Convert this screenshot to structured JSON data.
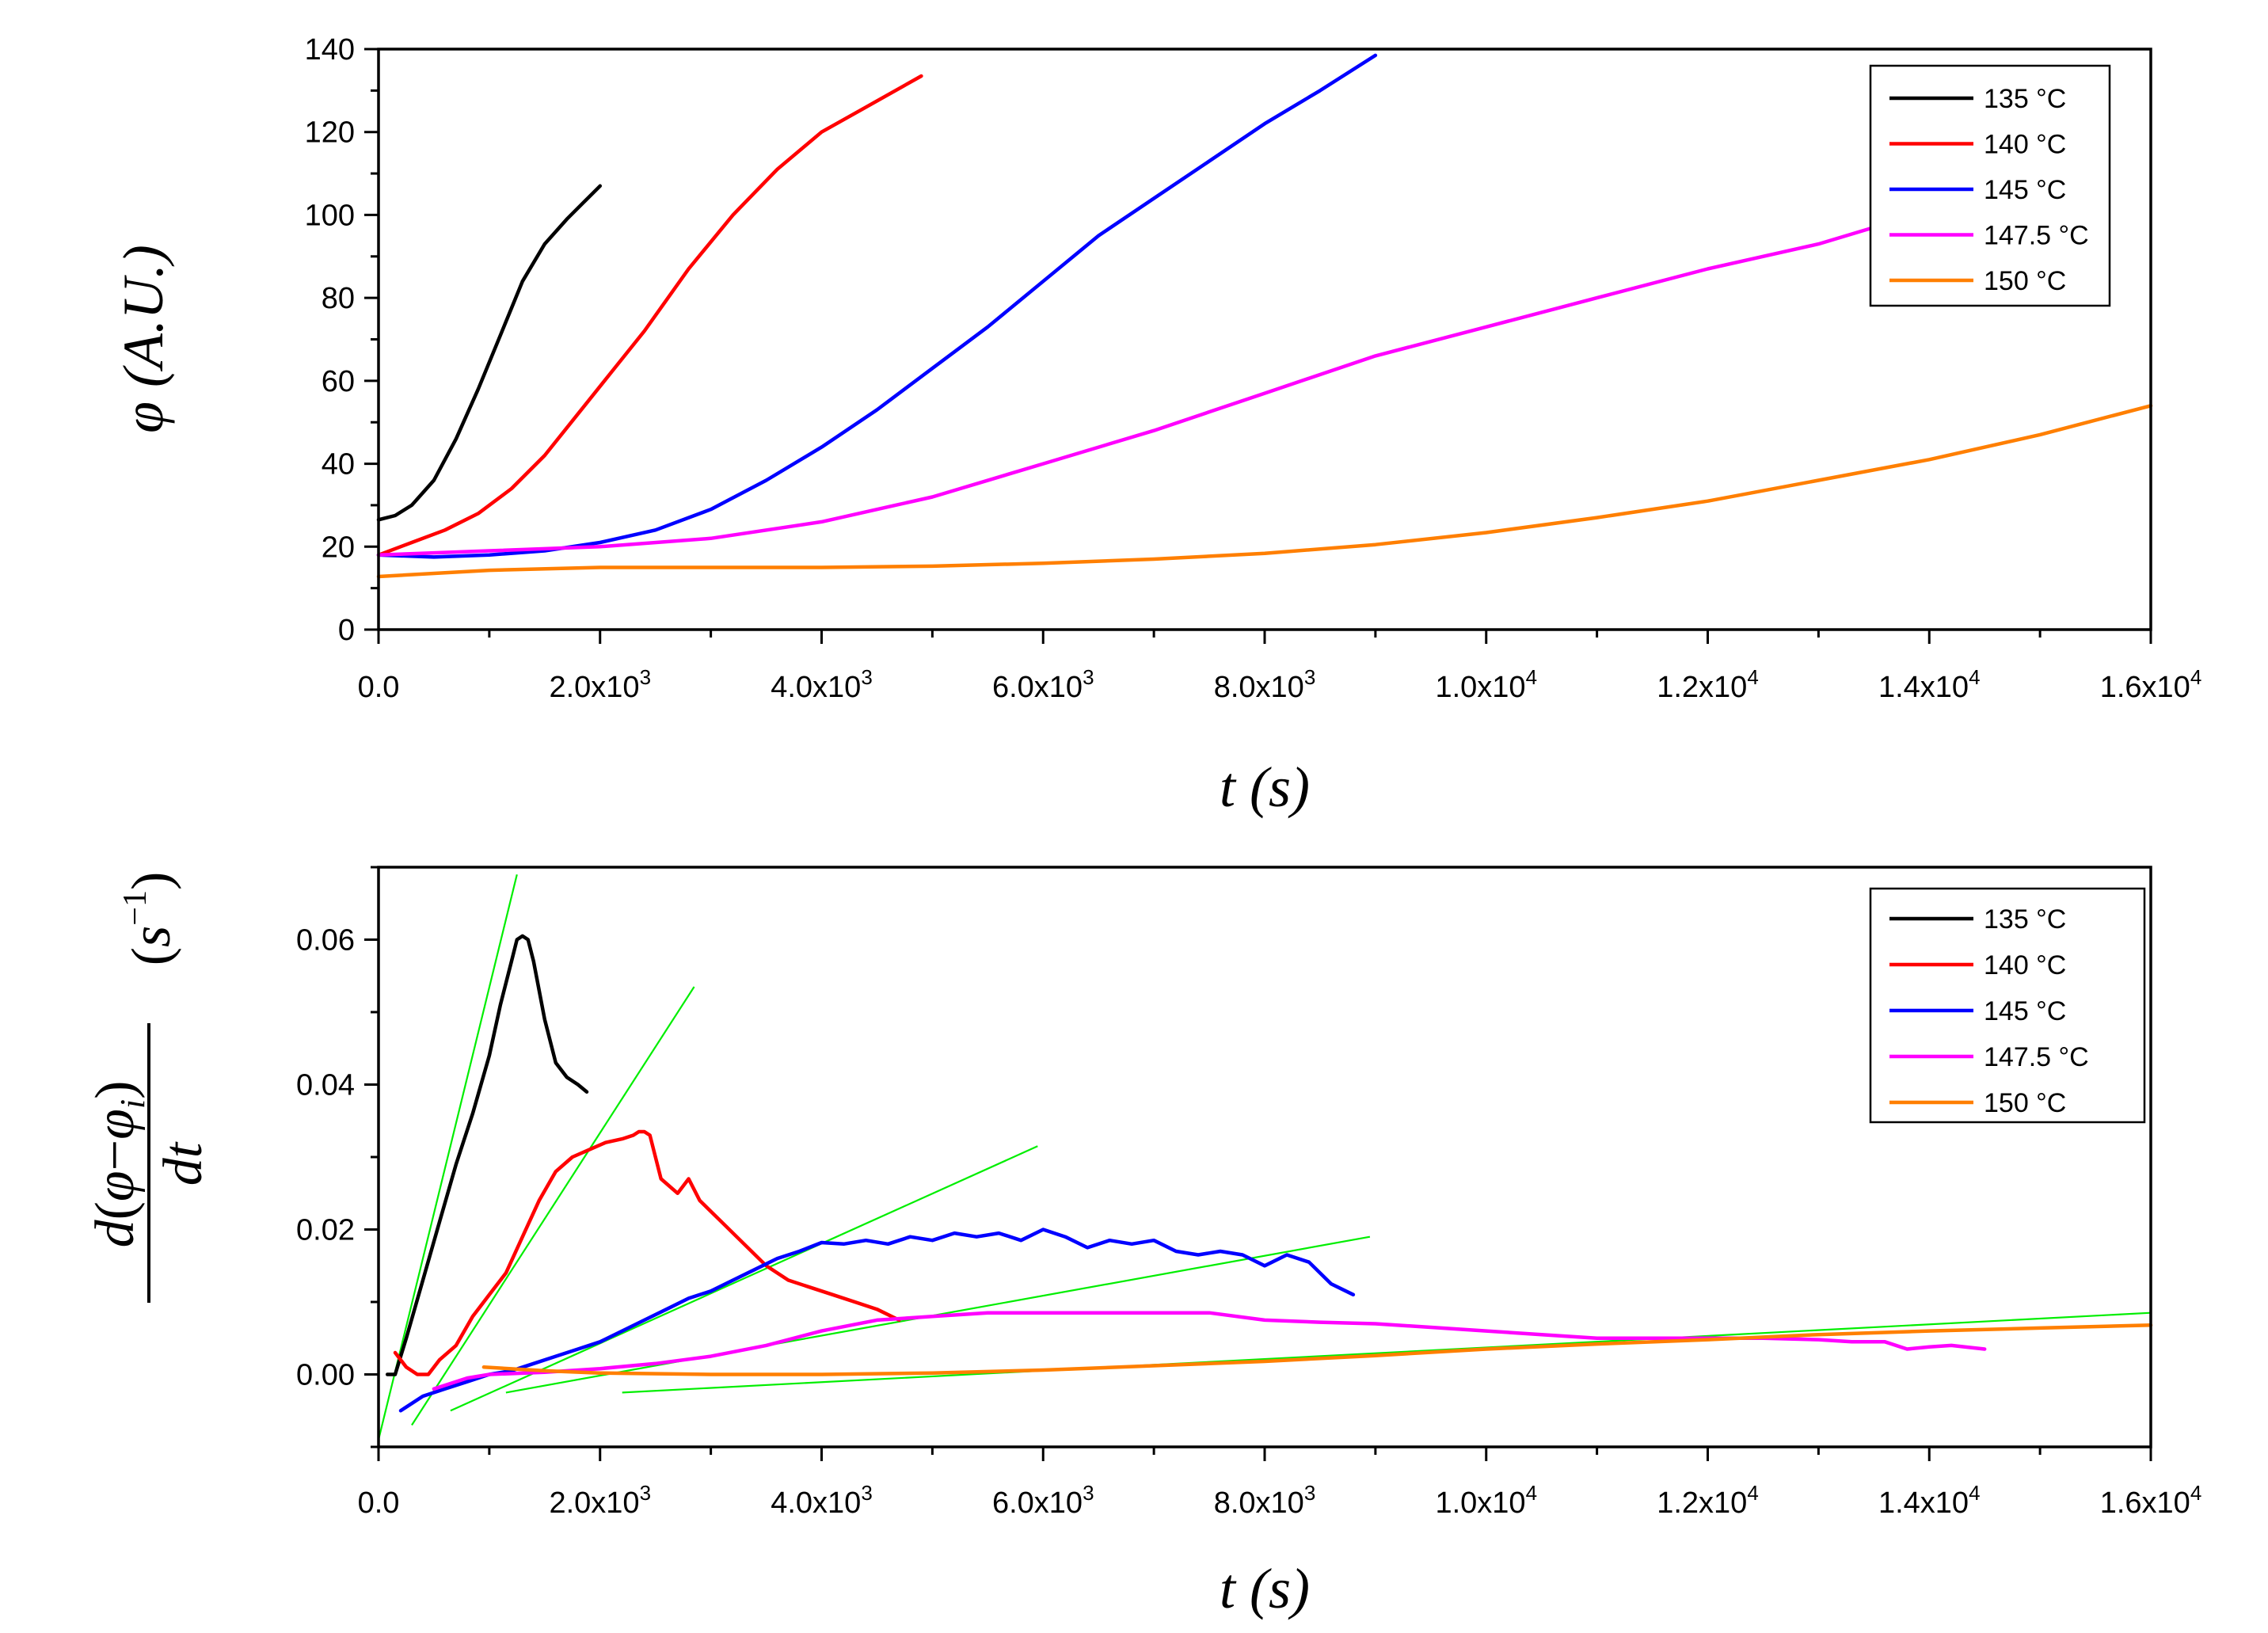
{
  "chart_data": [
    {
      "type": "line",
      "panel": "top",
      "xlabel": "t (s)",
      "ylabel": "φ  (A.U.)",
      "xlim": [
        0,
        16000
      ],
      "ylim": [
        0,
        140
      ],
      "xticks": [
        {
          "value": 0,
          "base": "0.0",
          "exp": ""
        },
        {
          "value": 2000,
          "base": "2.0x10",
          "exp": "3"
        },
        {
          "value": 4000,
          "base": "4.0x10",
          "exp": "3"
        },
        {
          "value": 6000,
          "base": "6.0x10",
          "exp": "3"
        },
        {
          "value": 8000,
          "base": "8.0x10",
          "exp": "3"
        },
        {
          "value": 10000,
          "base": "1.0x10",
          "exp": "4"
        },
        {
          "value": 12000,
          "base": "1.2x10",
          "exp": "4"
        },
        {
          "value": 14000,
          "base": "1.4x10",
          "exp": "4"
        },
        {
          "value": 16000,
          "base": "1.6x10",
          "exp": "4"
        }
      ],
      "yticks": [
        "0",
        "20",
        "40",
        "60",
        "80",
        "100",
        "120",
        "140"
      ],
      "legend": {
        "position": "top-right",
        "entries": [
          "135 °C",
          "140 °C",
          "145 °C",
          "147.5 °C",
          "150 °C"
        ]
      },
      "series": [
        {
          "name": "135 °C",
          "color": "#000000",
          "x": [
            0,
            150,
            300,
            500,
            700,
            900,
            1100,
            1300,
            1500,
            1700,
            1850,
            2000
          ],
          "y": [
            26.5,
            27.5,
            30,
            36,
            46,
            58,
            71,
            84,
            93,
            99,
            103,
            107
          ]
        },
        {
          "name": "140 °C",
          "color": "#ff0000",
          "x": [
            0,
            300,
            600,
            900,
            1200,
            1500,
            1800,
            2100,
            2400,
            2800,
            3200,
            3600,
            4000,
            4400,
            4900
          ],
          "y": [
            18,
            21,
            24,
            28,
            34,
            42,
            52,
            62,
            72,
            87,
            100,
            111,
            120,
            126,
            133.5
          ]
        },
        {
          "name": "145 °C",
          "color": "#0000ff",
          "x": [
            0,
            500,
            1000,
            1500,
            2000,
            2500,
            3000,
            3500,
            4000,
            4500,
            5000,
            5500,
            6000,
            6500,
            7000,
            7500,
            8000,
            8500,
            9000
          ],
          "y": [
            18,
            17.5,
            18,
            19,
            21,
            24,
            29,
            36,
            44,
            53,
            63,
            73,
            84,
            95,
            104,
            113,
            122,
            130,
            138.5
          ]
        },
        {
          "name": "147.5 °C",
          "color": "#ff00ff",
          "x": [
            0,
            1000,
            2000,
            3000,
            4000,
            5000,
            6000,
            7000,
            8000,
            9000,
            10000,
            11000,
            12000,
            13000,
            13500
          ],
          "y": [
            18,
            19,
            20,
            22,
            26,
            32,
            40,
            48,
            57,
            66,
            73,
            80,
            87,
            93,
            97
          ]
        },
        {
          "name": "150 °C",
          "color": "#ff7f00",
          "x": [
            0,
            1000,
            2000,
            3000,
            4000,
            5000,
            6000,
            7000,
            8000,
            9000,
            10000,
            11000,
            12000,
            13000,
            14000,
            15000,
            16000
          ],
          "y": [
            12.8,
            14.3,
            15,
            15,
            15,
            15.3,
            16,
            17,
            18.4,
            20.5,
            23.4,
            27,
            31,
            36,
            41,
            47,
            54
          ]
        }
      ]
    },
    {
      "type": "line",
      "panel": "bottom",
      "xlabel": "t (s)",
      "ylabel": "d(φ−φi)/dt  (s−1)",
      "ylabel_parts": {
        "numerator_d": "d",
        "numerator_open": "(",
        "phi": "φ",
        "minus": "−",
        "phi_i": "φ",
        "sub_i": "i",
        "numerator_close": ")",
        "denominator": "dt",
        "unit_open": "(",
        "unit_s": "s",
        "unit_exp": "−1",
        "unit_close": ")"
      },
      "xlim": [
        0,
        16000
      ],
      "ylim": [
        -0.01,
        0.07
      ],
      "xticks": [
        {
          "value": 0,
          "base": "0.0",
          "exp": ""
        },
        {
          "value": 2000,
          "base": "2.0x10",
          "exp": "3"
        },
        {
          "value": 4000,
          "base": "4.0x10",
          "exp": "3"
        },
        {
          "value": 6000,
          "base": "6.0x10",
          "exp": "3"
        },
        {
          "value": 8000,
          "base": "8.0x10",
          "exp": "3"
        },
        {
          "value": 10000,
          "base": "1.0x10",
          "exp": "4"
        },
        {
          "value": 12000,
          "base": "1.2x10",
          "exp": "4"
        },
        {
          "value": 14000,
          "base": "1.4x10",
          "exp": "4"
        },
        {
          "value": 16000,
          "base": "1.6x10",
          "exp": "4"
        }
      ],
      "yticks": [
        "0.00",
        "0.02",
        "0.04",
        "0.06"
      ],
      "legend": {
        "position": "top-right",
        "entries": [
          "135 °C",
          "140 °C",
          "145 °C",
          "147.5 °C",
          "150 °C"
        ]
      },
      "series": [
        {
          "name": "135 °C",
          "color": "#000000",
          "x": [
            80,
            150,
            250,
            400,
            550,
            700,
            850,
            1000,
            1100,
            1200,
            1250,
            1300,
            1350,
            1400,
            1450,
            1500,
            1550,
            1600,
            1700,
            1800,
            1880
          ],
          "y": [
            0.0,
            0.0,
            0.005,
            0.013,
            0.021,
            0.029,
            0.036,
            0.044,
            0.051,
            0.057,
            0.06,
            0.0605,
            0.06,
            0.057,
            0.053,
            0.049,
            0.046,
            0.043,
            0.041,
            0.04,
            0.039
          ]
        },
        {
          "name": "140 °C",
          "color": "#ff0000",
          "x": [
            150,
            250,
            350,
            450,
            550,
            700,
            850,
            1000,
            1150,
            1300,
            1450,
            1600,
            1750,
            1900,
            2050,
            2200,
            2300,
            2350,
            2400,
            2450,
            2550,
            2700,
            2800,
            2900,
            3100,
            3300,
            3500,
            3700,
            3900,
            4100,
            4300,
            4500,
            4700
          ],
          "y": [
            0.003,
            0.001,
            0.0,
            0.0,
            0.002,
            0.004,
            0.008,
            0.011,
            0.014,
            0.019,
            0.024,
            0.028,
            0.03,
            0.031,
            0.032,
            0.0325,
            0.033,
            0.0335,
            0.0335,
            0.033,
            0.027,
            0.025,
            0.027,
            0.024,
            0.021,
            0.018,
            0.015,
            0.013,
            0.012,
            0.011,
            0.01,
            0.009,
            0.0075
          ]
        },
        {
          "name": "145 °C",
          "color": "#0000ff",
          "x": [
            200,
            400,
            600,
            800,
            1000,
            1200,
            1400,
            1600,
            1800,
            2000,
            2200,
            2400,
            2600,
            2800,
            3000,
            3200,
            3400,
            3600,
            3800,
            4000,
            4200,
            4400,
            4600,
            4800,
            5000,
            5200,
            5400,
            5600,
            5800,
            6000,
            6200,
            6400,
            6600,
            6800,
            7000,
            7200,
            7400,
            7600,
            7800,
            8000,
            8200,
            8400,
            8600,
            8800
          ],
          "y": [
            -0.005,
            -0.003,
            -0.002,
            -0.001,
            0.0,
            0.0005,
            0.0015,
            0.0025,
            0.0035,
            0.0045,
            0.006,
            0.0075,
            0.009,
            0.0105,
            0.0115,
            0.013,
            0.0145,
            0.016,
            0.017,
            0.0182,
            0.018,
            0.0185,
            0.018,
            0.019,
            0.0185,
            0.0195,
            0.019,
            0.0195,
            0.0185,
            0.02,
            0.019,
            0.0175,
            0.0185,
            0.018,
            0.0185,
            0.017,
            0.0165,
            0.017,
            0.0165,
            0.015,
            0.0165,
            0.0155,
            0.0125,
            0.011
          ]
        },
        {
          "name": "147.5 °C",
          "color": "#ff00ff",
          "x": [
            500,
            800,
            1000,
            1500,
            2000,
            2500,
            3000,
            3500,
            4000,
            4500,
            5000,
            5500,
            6000,
            6500,
            7000,
            7500,
            8000,
            8500,
            9000,
            9500,
            10000,
            10500,
            11000,
            11500,
            12000,
            12500,
            13000,
            13300,
            13600,
            13800,
            14000,
            14200,
            14500
          ],
          "y": [
            -0.002,
            -0.0005,
            0.0,
            0.0003,
            0.0008,
            0.0015,
            0.0025,
            0.004,
            0.006,
            0.0075,
            0.008,
            0.0085,
            0.0085,
            0.0085,
            0.0085,
            0.0085,
            0.0075,
            0.0072,
            0.007,
            0.0065,
            0.006,
            0.0055,
            0.005,
            0.005,
            0.005,
            0.005,
            0.0048,
            0.0045,
            0.0045,
            0.0035,
            0.0038,
            0.004,
            0.0035
          ]
        },
        {
          "name": "150 °C",
          "color": "#ff7f00",
          "x": [
            950,
            1500,
            2000,
            3000,
            4000,
            5000,
            6000,
            7000,
            8000,
            9000,
            10000,
            11000,
            12000,
            13000,
            14000,
            15000,
            16000
          ],
          "y": [
            0.001,
            0.0005,
            0.0002,
            0.0,
            0.0,
            0.0002,
            0.0006,
            0.0012,
            0.0018,
            0.0026,
            0.0035,
            0.0042,
            0.0048,
            0.0055,
            0.006,
            0.0064,
            0.0068
          ]
        }
      ],
      "fit_lines": [
        {
          "color": "#00ee00",
          "x": [
            0,
            1250
          ],
          "y": [
            -0.009,
            0.069
          ]
        },
        {
          "color": "#00ee00",
          "x": [
            300,
            2850
          ],
          "y": [
            -0.007,
            0.0535
          ]
        },
        {
          "color": "#00ee00",
          "x": [
            650,
            5950
          ],
          "y": [
            -0.005,
            0.0315
          ]
        },
        {
          "color": "#00ee00",
          "x": [
            1150,
            8950
          ],
          "y": [
            -0.0025,
            0.019
          ]
        },
        {
          "color": "#00ee00",
          "x": [
            2200,
            16000
          ],
          "y": [
            -0.0025,
            0.0085
          ]
        }
      ]
    }
  ]
}
